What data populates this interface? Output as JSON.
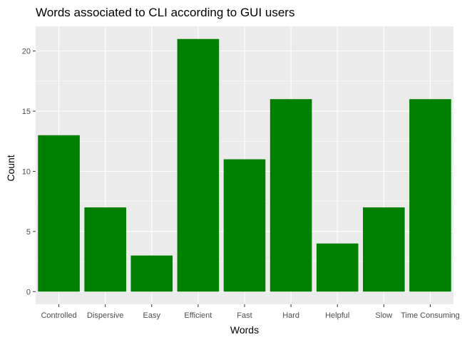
{
  "chart_data": {
    "type": "bar",
    "title": "Words associated to CLI according to GUI users",
    "xlabel": "Words",
    "ylabel": "Count",
    "categories": [
      "Controlled",
      "Dispersive",
      "Easy",
      "Efficient",
      "Fast",
      "Hard",
      "Helpful",
      "Slow",
      "Time Consuming"
    ],
    "values": [
      13,
      7,
      3,
      21,
      11,
      16,
      4,
      7,
      16
    ],
    "ylim": [
      -1.05,
      22.05
    ],
    "yticks": [
      0,
      5,
      10,
      15,
      20
    ],
    "bar_color": "#008000",
    "panel_color": "#ebebeb",
    "grid": true,
    "legend": "none"
  }
}
